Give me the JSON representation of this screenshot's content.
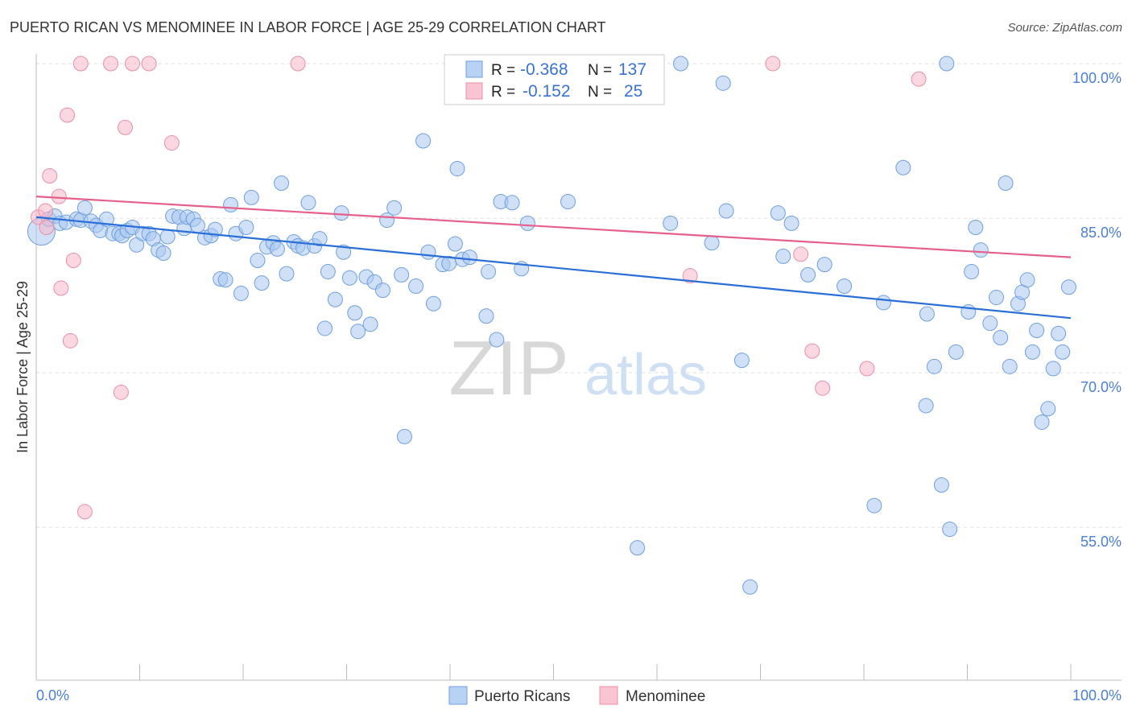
{
  "chart_data": {
    "type": "scatter",
    "title": "PUERTO RICAN VS MENOMINEE IN LABOR FORCE | AGE 25-29 CORRELATION CHART",
    "source": "Source: ZipAtlas.com",
    "xlabel": "",
    "ylabel": "In Labor Force | Age 25-29",
    "xlim": [
      0,
      100
    ],
    "ylim": [
      40.2,
      100.9
    ],
    "x_tick_labels": [
      "0.0%",
      "100.0%"
    ],
    "y_ticks": [
      100,
      85,
      70,
      55
    ],
    "y_tick_labels": [
      "100.0%",
      "85.0%",
      "70.0%",
      "55.0%"
    ],
    "grid": true,
    "watermark": "ZIPatlas",
    "legend": {
      "placement": "top-center",
      "rows": [
        {
          "r_label": "R =",
          "r_value": "-0.368",
          "n_label": "N =",
          "n_value": "137"
        },
        {
          "r_label": "R =",
          "r_value": "-0.152",
          "n_label": "N =",
          "n_value": "25"
        }
      ]
    },
    "bottom_legend": [
      "Puerto Ricans",
      "Menominee"
    ],
    "series": [
      {
        "name": "Puerto Ricans",
        "color": "#6f9fe0",
        "fill": "#a9c8f0",
        "trend": [
          [
            0,
            85.1
          ],
          [
            100,
            75.3
          ]
        ],
        "points": [
          [
            0.5,
            83.7
          ],
          [
            1.2,
            84.9
          ],
          [
            1.8,
            85.2
          ],
          [
            2.3,
            84.5
          ],
          [
            2.9,
            84.6
          ],
          [
            3.9,
            84.9
          ],
          [
            4.3,
            84.8
          ],
          [
            4.7,
            86.0
          ],
          [
            5.3,
            84.7
          ],
          [
            5.8,
            84.3
          ],
          [
            6.2,
            83.8
          ],
          [
            6.8,
            84.9
          ],
          [
            7.4,
            83.5
          ],
          [
            8.0,
            83.5
          ],
          [
            8.3,
            83.3
          ],
          [
            8.8,
            83.8
          ],
          [
            9.3,
            84.1
          ],
          [
            9.7,
            82.4
          ],
          [
            10.3,
            83.5
          ],
          [
            10.9,
            83.5
          ],
          [
            11.3,
            83.0
          ],
          [
            11.8,
            81.9
          ],
          [
            12.3,
            81.6
          ],
          [
            12.7,
            83.2
          ],
          [
            13.2,
            85.2
          ],
          [
            13.8,
            85.1
          ],
          [
            14.3,
            84.0
          ],
          [
            14.6,
            85.1
          ],
          [
            15.2,
            84.9
          ],
          [
            15.6,
            84.3
          ],
          [
            16.3,
            83.1
          ],
          [
            16.9,
            83.3
          ],
          [
            17.3,
            83.9
          ],
          [
            17.8,
            79.1
          ],
          [
            18.3,
            79.0
          ],
          [
            18.8,
            86.3
          ],
          [
            19.3,
            83.5
          ],
          [
            19.8,
            77.7
          ],
          [
            20.3,
            84.1
          ],
          [
            20.8,
            87.0
          ],
          [
            21.4,
            80.9
          ],
          [
            21.8,
            78.7
          ],
          [
            22.3,
            82.2
          ],
          [
            22.9,
            82.6
          ],
          [
            23.3,
            82.0
          ],
          [
            23.7,
            88.4
          ],
          [
            24.2,
            79.6
          ],
          [
            24.9,
            82.7
          ],
          [
            25.3,
            82.3
          ],
          [
            25.8,
            82.1
          ],
          [
            26.3,
            86.5
          ],
          [
            26.9,
            82.3
          ],
          [
            27.4,
            83.0
          ],
          [
            27.9,
            74.3
          ],
          [
            28.2,
            79.8
          ],
          [
            28.9,
            77.1
          ],
          [
            29.5,
            85.5
          ],
          [
            29.7,
            81.7
          ],
          [
            30.3,
            79.2
          ],
          [
            30.8,
            75.8
          ],
          [
            31.1,
            74.0
          ],
          [
            31.9,
            79.3
          ],
          [
            32.3,
            74.7
          ],
          [
            32.7,
            78.8
          ],
          [
            33.5,
            78.0
          ],
          [
            33.9,
            84.8
          ],
          [
            34.6,
            86.0
          ],
          [
            35.3,
            79.5
          ],
          [
            35.6,
            63.8
          ],
          [
            36.7,
            78.4
          ],
          [
            37.4,
            92.5
          ],
          [
            37.9,
            81.7
          ],
          [
            38.4,
            76.7
          ],
          [
            39.3,
            80.5
          ],
          [
            39.9,
            80.6
          ],
          [
            40.5,
            82.5
          ],
          [
            40.7,
            89.8
          ],
          [
            41.2,
            81.0
          ],
          [
            41.9,
            81.2
          ],
          [
            43.5,
            75.5
          ],
          [
            43.7,
            79.8
          ],
          [
            44.5,
            73.2
          ],
          [
            44.9,
            86.6
          ],
          [
            46.0,
            86.5
          ],
          [
            46.9,
            80.1
          ],
          [
            47.5,
            84.5
          ],
          [
            51.4,
            86.6
          ],
          [
            58.1,
            53.0
          ],
          [
            61.3,
            84.5
          ],
          [
            62.3,
            100.0
          ],
          [
            65.3,
            82.6
          ],
          [
            66.4,
            98.1
          ],
          [
            66.7,
            85.7
          ],
          [
            68.2,
            71.2
          ],
          [
            69.0,
            49.2
          ],
          [
            71.7,
            85.5
          ],
          [
            72.2,
            81.3
          ],
          [
            73.0,
            84.5
          ],
          [
            74.6,
            79.5
          ],
          [
            76.2,
            80.5
          ],
          [
            78.1,
            78.4
          ],
          [
            81.0,
            57.1
          ],
          [
            81.9,
            76.8
          ],
          [
            83.8,
            89.9
          ],
          [
            86.0,
            66.8
          ],
          [
            86.1,
            75.7
          ],
          [
            86.8,
            70.6
          ],
          [
            87.5,
            59.1
          ],
          [
            88.0,
            100.0
          ],
          [
            88.3,
            54.8
          ],
          [
            88.9,
            72.0
          ],
          [
            90.1,
            75.9
          ],
          [
            90.4,
            79.8
          ],
          [
            90.8,
            84.1
          ],
          [
            91.3,
            81.9
          ],
          [
            92.2,
            74.8
          ],
          [
            92.8,
            77.3
          ],
          [
            93.2,
            73.4
          ],
          [
            93.7,
            88.4
          ],
          [
            94.1,
            70.6
          ],
          [
            94.9,
            76.7
          ],
          [
            95.3,
            77.8
          ],
          [
            95.8,
            79.0
          ],
          [
            96.3,
            72.0
          ],
          [
            96.7,
            74.1
          ],
          [
            97.2,
            65.2
          ],
          [
            97.8,
            66.5
          ],
          [
            98.3,
            70.4
          ],
          [
            98.8,
            73.8
          ],
          [
            99.2,
            72.0
          ],
          [
            99.8,
            78.3
          ],
          [
            46.7,
            100.0
          ],
          [
            49.3,
            100.0
          ],
          [
            55.6,
            100.0
          ]
        ]
      },
      {
        "name": "Menominee",
        "color": "#e890a8",
        "fill": "#f7b6c8",
        "trend": [
          [
            0,
            87.1
          ],
          [
            100,
            81.2
          ]
        ],
        "points": [
          [
            0.2,
            85.1
          ],
          [
            0.9,
            85.7
          ],
          [
            1.3,
            89.1
          ],
          [
            2.2,
            87.1
          ],
          [
            1.0,
            84.1
          ],
          [
            2.4,
            78.2
          ],
          [
            3.0,
            95.0
          ],
          [
            3.3,
            73.1
          ],
          [
            3.6,
            80.9
          ],
          [
            4.3,
            100.0
          ],
          [
            4.7,
            56.5
          ],
          [
            7.2,
            100.0
          ],
          [
            8.2,
            68.1
          ],
          [
            8.6,
            93.8
          ],
          [
            9.3,
            100.0
          ],
          [
            10.9,
            100.0
          ],
          [
            13.1,
            92.3
          ],
          [
            25.3,
            100.0
          ],
          [
            63.2,
            79.4
          ],
          [
            71.2,
            100.0
          ],
          [
            73.9,
            81.5
          ],
          [
            75.0,
            72.1
          ],
          [
            76.0,
            68.5
          ],
          [
            80.3,
            70.4
          ],
          [
            85.3,
            98.5
          ]
        ]
      }
    ]
  }
}
